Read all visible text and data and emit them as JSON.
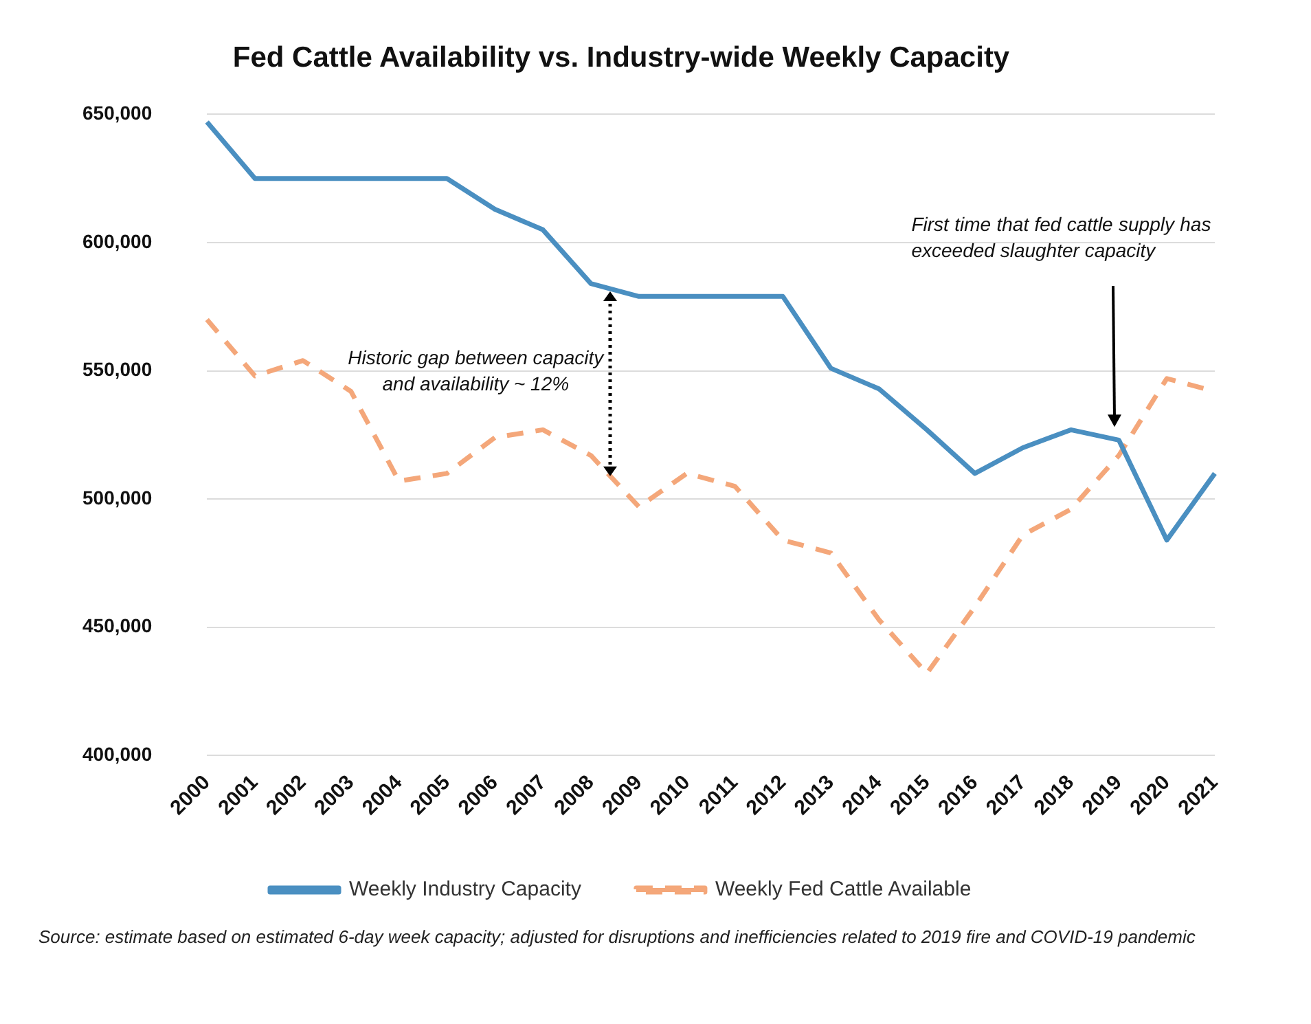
{
  "chart_data": {
    "type": "line",
    "title": "Fed Cattle Availability vs. Industry-wide Weekly Capacity",
    "categories": [
      "2000",
      "2001",
      "2002",
      "2003",
      "2004",
      "2005",
      "2006",
      "2007",
      "2008",
      "2009",
      "2010",
      "2011",
      "2012",
      "2013",
      "2014",
      "2015",
      "2016",
      "2017",
      "2018",
      "2019",
      "2020",
      "2021"
    ],
    "series": [
      {
        "name": "Weekly Industry Capacity",
        "color": "#4a8fc1",
        "line_style": "solid",
        "values": [
          647000,
          625000,
          625000,
          625000,
          625000,
          625000,
          613000,
          605000,
          584000,
          579000,
          579000,
          579000,
          579000,
          551000,
          543000,
          527000,
          510000,
          520000,
          527000,
          523000,
          484000,
          510000
        ]
      },
      {
        "name": "Weekly Fed Cattle Available",
        "color": "#f4a77a",
        "line_style": "dashed",
        "values": [
          570000,
          548000,
          554000,
          542000,
          507000,
          510000,
          524000,
          527000,
          517000,
          497000,
          510000,
          505000,
          484000,
          479000,
          453000,
          432000,
          458000,
          486000,
          496000,
          517000,
          547000,
          542000
        ]
      }
    ],
    "ylim": [
      400000,
      650000
    ],
    "yticks": [
      {
        "value": 400000,
        "label": "400,000"
      },
      {
        "value": 450000,
        "label": "450,000"
      },
      {
        "value": 500000,
        "label": "500,000"
      },
      {
        "value": 550000,
        "label": "550,000"
      },
      {
        "value": 600000,
        "label": "600,000"
      },
      {
        "value": 650000,
        "label": "650,000"
      }
    ],
    "grid": "y",
    "legend": "bottom",
    "marker": "none",
    "annotations": [
      "Historic gap between capacity and availability ~ 12%",
      "First time that fed cattle supply has exceeded slaughter capacity",
      "Source: estimate based on estimated 6-day week capacity; adjusted for disruptions and inefficiencies related to 2019 fire and COVID-19 pandemic"
    ]
  }
}
